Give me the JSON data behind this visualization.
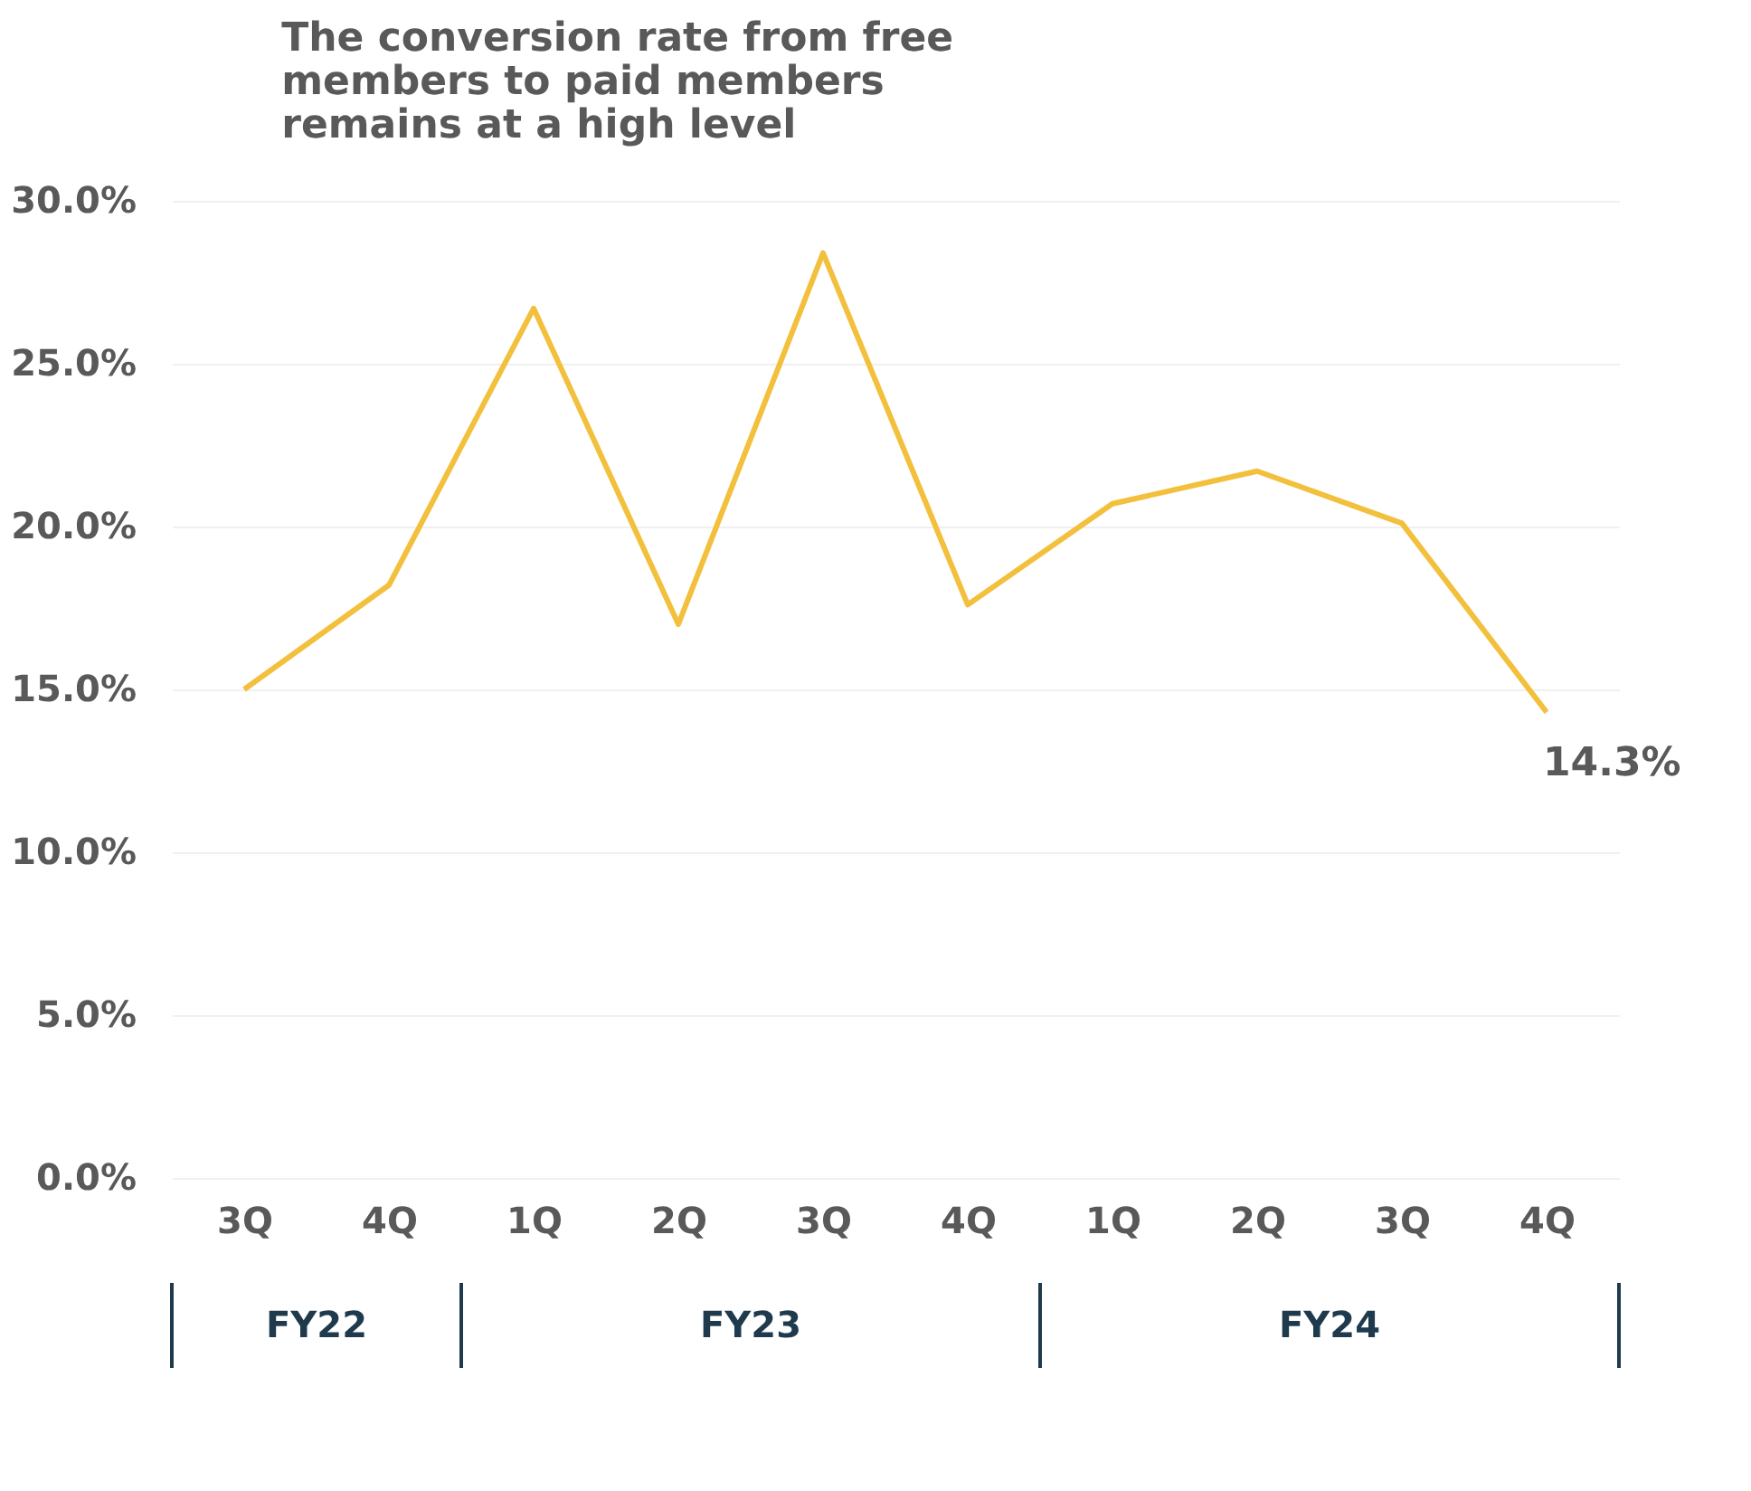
{
  "chart_data": {
    "type": "line",
    "title": "The conversion rate from free members to paid members remains at a high level",
    "categories": [
      "3Q",
      "4Q",
      "1Q",
      "2Q",
      "3Q",
      "4Q",
      "1Q",
      "2Q",
      "3Q",
      "4Q"
    ],
    "series": [
      {
        "color": "#f2c03c",
        "values": [
          15.0,
          18.2,
          26.7,
          17.0,
          28.4,
          17.6,
          20.7,
          21.7,
          20.1,
          14.3
        ],
        "value_labels": [
          null,
          null,
          null,
          null,
          null,
          null,
          null,
          null,
          null,
          "14.3%"
        ]
      }
    ],
    "ylim": [
      0,
      30
    ],
    "yticks": [
      {
        "value": 0,
        "label": "0.0%"
      },
      {
        "value": 5,
        "label": "5.0%"
      },
      {
        "value": 10,
        "label": "10.0%"
      },
      {
        "value": 15,
        "label": "15.0%"
      },
      {
        "value": 20,
        "label": "20.0%"
      },
      {
        "value": 25,
        "label": "25.0%"
      },
      {
        "value": 30,
        "label": "30.0%"
      }
    ],
    "grid": "y",
    "marker": "none",
    "line_style": "solid",
    "annotations": [
      "FY22",
      "FY23",
      "FY24"
    ]
  }
}
